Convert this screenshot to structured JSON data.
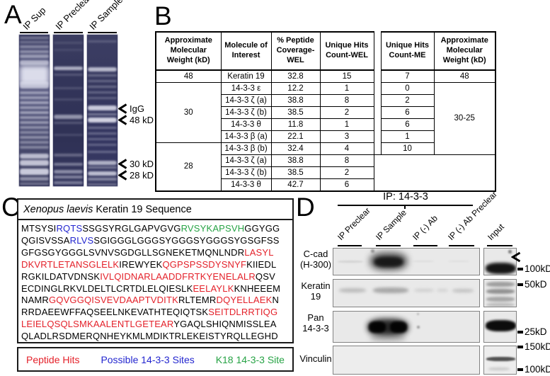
{
  "colors": {
    "red": "#e4212a",
    "blue": "#2326cf",
    "green": "#27a345",
    "gel_bg": "#343657",
    "gel_band": "#e2e3f0",
    "blot_bg": "#e9e9e9"
  },
  "panel_a": {
    "label": "A",
    "lane_labels": [
      "IP Sup",
      "IP Preclear",
      "IP Sample"
    ],
    "annotations": [
      "IgG",
      "48 kD",
      "30 kD",
      "28 kD"
    ],
    "lanes": [
      {
        "bands": [
          [
            3,
            3,
            0.35
          ],
          [
            9,
            3,
            0.3
          ],
          [
            15,
            4,
            0.4
          ],
          [
            22,
            4,
            0.45
          ],
          [
            28,
            5,
            0.5
          ],
          [
            36,
            7,
            0.65
          ],
          [
            44,
            26,
            0.95
          ],
          [
            66,
            10,
            0.7
          ],
          [
            80,
            4,
            0.5
          ],
          [
            87,
            4,
            0.5
          ],
          [
            94,
            4,
            0.55
          ],
          [
            101,
            4,
            0.5
          ],
          [
            108,
            4,
            0.55
          ],
          [
            115,
            4,
            0.5
          ],
          [
            122,
            4,
            0.5
          ],
          [
            129,
            4,
            0.45
          ],
          [
            136,
            4,
            0.4
          ],
          [
            143,
            4,
            0.45
          ],
          [
            150,
            4,
            0.4
          ],
          [
            157,
            4,
            0.4
          ],
          [
            168,
            7,
            0.75
          ],
          [
            177,
            8,
            0.8
          ],
          [
            189,
            9,
            0.85
          ],
          [
            201,
            5,
            0.5
          ],
          [
            209,
            3,
            0.35
          ]
        ]
      },
      {
        "bands": [
          [
            10,
            3,
            0.12
          ],
          [
            20,
            3,
            0.1
          ],
          [
            45,
            5,
            0.7
          ],
          [
            55,
            3,
            0.2
          ],
          [
            74,
            3,
            0.18
          ],
          [
            90,
            3,
            0.15
          ],
          [
            113,
            6,
            0.55
          ],
          [
            123,
            3,
            0.22
          ],
          [
            140,
            3,
            0.15
          ],
          [
            168,
            4,
            0.3
          ],
          [
            181,
            4,
            0.4
          ],
          [
            191,
            5,
            0.5
          ],
          [
            199,
            4,
            0.45
          ],
          [
            207,
            4,
            0.4
          ]
        ]
      },
      {
        "bands": [
          [
            8,
            3,
            0.2
          ],
          [
            46,
            6,
            0.75
          ],
          [
            56,
            3,
            0.3
          ],
          [
            64,
            3,
            0.28
          ],
          [
            72,
            3,
            0.3
          ],
          [
            80,
            3,
            0.28
          ],
          [
            88,
            3,
            0.25
          ],
          [
            100,
            7,
            0.85
          ],
          [
            111,
            3,
            0.4
          ],
          [
            117,
            7,
            0.9
          ],
          [
            130,
            3,
            0.32
          ],
          [
            138,
            3,
            0.3
          ],
          [
            146,
            3,
            0.28
          ],
          [
            154,
            3,
            0.28
          ],
          [
            164,
            3,
            0.3
          ],
          [
            178,
            6,
            0.7
          ],
          [
            186,
            3,
            0.4
          ],
          [
            193,
            6,
            0.78
          ],
          [
            202,
            4,
            0.45
          ],
          [
            210,
            3,
            0.3
          ]
        ]
      }
    ]
  },
  "panel_b": {
    "label": "B",
    "headers": [
      "Approximate Molecular Weight (kD)",
      "Molecule of Interest",
      "% Peptide Coverage-WEL",
      "Unique Hits Count-WEL",
      "Unique Hits Count-ME",
      "Approximate Molecular Weight (kD)"
    ],
    "rows": [
      [
        {
          "t": "48"
        },
        {
          "t": "Keratin 19"
        },
        {
          "t": "32.8"
        },
        {
          "t": "15"
        },
        {
          "sp": 1
        },
        {
          "t": "7"
        },
        {
          "t": "48"
        }
      ],
      [
        {
          "t": "30",
          "rs": 5
        },
        {
          "t": "14-3-3 ε"
        },
        {
          "t": "12.2"
        },
        {
          "t": "1"
        },
        {
          "sp": 1
        },
        {
          "t": "0"
        },
        {
          "t": "30-25",
          "rs": 6
        }
      ],
      [
        {
          "t": "14-3-3 ζ (a)"
        },
        {
          "t": "38.8"
        },
        {
          "t": "8"
        },
        {
          "sp": 1
        },
        {
          "t": "2"
        }
      ],
      [
        {
          "t": "14-3-3 ζ (b)"
        },
        {
          "t": "38.5"
        },
        {
          "t": "2"
        },
        {
          "sp": 1
        },
        {
          "t": "6"
        }
      ],
      [
        {
          "t": "14-3-3 θ"
        },
        {
          "t": "11.8"
        },
        {
          "t": "1"
        },
        {
          "sp": 1
        },
        {
          "t": "6"
        }
      ],
      [
        {
          "t": "14-3-3 β (a)"
        },
        {
          "t": "22.1"
        },
        {
          "t": "3"
        },
        {
          "sp": 1
        },
        {
          "t": "1"
        }
      ],
      [
        {
          "t": "28",
          "rs": 4
        },
        {
          "t": "14-3-3 β (b)"
        },
        {
          "t": "32.4"
        },
        {
          "t": "4"
        },
        {
          "sp": 1
        },
        {
          "t": "10"
        }
      ],
      [
        {
          "t": "14-3-3 ζ (a)"
        },
        {
          "t": "38.8"
        },
        {
          "t": "8"
        },
        {
          "t": "",
          "cs": 3,
          "rs": 3
        }
      ],
      [
        {
          "t": "14-3-3 ζ (b)"
        },
        {
          "t": "38.5"
        },
        {
          "t": "2"
        }
      ],
      [
        {
          "t": "14-3-3 θ"
        },
        {
          "t": "42.7"
        },
        {
          "t": "6"
        }
      ]
    ]
  },
  "panel_c": {
    "label": "C",
    "title_italic": "Xenopus laevis",
    "title_rest": " Keratin 19 Sequence",
    "legend": [
      {
        "text": "Peptide Hits",
        "color": "red"
      },
      {
        "text": "Possible 14-3-3 Sites",
        "color": "blue"
      },
      {
        "text": "K18 14-3-3 Site",
        "color": "green"
      }
    ],
    "sequence_lines": [
      [
        [
          "MTSYSI",
          "k"
        ],
        [
          "RQTS",
          "b"
        ],
        [
          "SSGSYRGLGAPVGVG",
          "k"
        ],
        [
          "RVSYKAPSVH",
          "g"
        ],
        [
          "GGYGG",
          "k"
        ]
      ],
      [
        [
          "QGISVSSA",
          "k"
        ],
        [
          "RLVS",
          "b"
        ],
        [
          "SGIGGGLGGGSYGGGSYGGGSYGSGFSS",
          "k"
        ]
      ],
      [
        [
          "GFGSGYGGGLSVNVSGDGLLSGNEKETMQNLNDR",
          "k"
        ],
        [
          "LASYL",
          "r"
        ]
      ],
      [
        [
          "DKVRTLETANSGLELK",
          "r"
        ],
        [
          "IREWYEK",
          "k"
        ],
        [
          "QGPSPSSDYSNYF",
          "r"
        ],
        [
          "KIIEDL",
          "k"
        ]
      ],
      [
        [
          "RGKILDATVDNSK",
          "k"
        ],
        [
          "IVLQIDNARLAADDFRTKYENELALR",
          "r"
        ],
        [
          "QSV",
          "k"
        ]
      ],
      [
        [
          "ECDINGLRKVLDELTLCRTDLELQIESLK",
          "k"
        ],
        [
          "EELAYLK",
          "r"
        ],
        [
          "KNHEEEM",
          "k"
        ]
      ],
      [
        [
          "NAMR",
          "k"
        ],
        [
          "GQVGGQISVEVDAAPTVDITK",
          "r"
        ],
        [
          "RLTEMR",
          "k"
        ],
        [
          "DQYELLAEK",
          "r"
        ],
        [
          "N",
          "k"
        ]
      ],
      [
        [
          "RRDAEEWFFAQSEELNKEVATHTEQIQTSK",
          "k"
        ],
        [
          "SEITDLRRTIQG",
          "r"
        ]
      ],
      [
        [
          "LEIELQSQLSMKAALENTLGETEAR",
          "r"
        ],
        [
          "YGAQLSHIQNMISSLEA",
          "k"
        ]
      ],
      [
        [
          "QLADLRSDMERQNHEYKMLMDIKTRLEKEISTYRQLLEGHD",
          "k"
        ]
      ]
    ]
  },
  "panel_d": {
    "label": "D",
    "ip_header": "IP: 14-3-3",
    "lane_labels": [
      "IP Preclear",
      "IP Sample",
      "IP (-) Ab",
      "IP (-) Ab Preclear",
      "Input"
    ],
    "rows": [
      {
        "label_lines": [
          "C-cad",
          "(H-300)"
        ]
      },
      {
        "label_lines": [
          "Keratin",
          "19"
        ]
      },
      {
        "label_lines": [
          "Pan",
          "14-3-3"
        ]
      },
      {
        "label_lines": [
          "Vinculin"
        ]
      }
    ],
    "markers": [
      "100kD",
      "50kD",
      "25kD",
      "150kD",
      "100kD"
    ],
    "blots": [
      {
        "bands": [
          [
            6,
            17,
            36,
            3,
            "#aaaaaa",
            0.35,
            1
          ],
          [
            52,
            6,
            52,
            24,
            "#1c1c1c",
            0.8,
            5
          ],
          [
            58,
            12,
            40,
            14,
            "#111111",
            0.85,
            2
          ],
          [
            112,
            17,
            30,
            2,
            "#bbbbbb",
            0.3,
            1
          ],
          [
            162,
            17,
            30,
            2,
            "#bbbbbb",
            0.25,
            1
          ],
          [
            53,
            1,
            5,
            5,
            "#555555",
            0.5,
            1
          ]
        ],
        "input_bands": [
          [
            2,
            20,
            43,
            16,
            "#0a0a0a",
            0.95,
            2
          ],
          [
            34,
            2,
            5,
            5,
            "#444444",
            0.6,
            1
          ]
        ]
      },
      {
        "bands": [
          [
            8,
            12,
            38,
            6,
            "#777777",
            0.4,
            2
          ],
          [
            56,
            11,
            50,
            8,
            "#666666",
            0.5,
            2
          ],
          [
            114,
            13,
            28,
            4,
            "#888888",
            0.3,
            2
          ],
          [
            146,
            13,
            16,
            4,
            "#888888",
            0.25,
            2
          ],
          [
            168,
            13,
            30,
            5,
            "#777777",
            0.35,
            2
          ]
        ],
        "input_bands": [
          [
            3,
            3,
            40,
            7,
            "#555555",
            0.5,
            1.5
          ],
          [
            3,
            13,
            40,
            7,
            "#4a4a4a",
            0.55,
            1.5
          ],
          [
            3,
            24,
            40,
            7,
            "#555555",
            0.45,
            1.5
          ],
          [
            3,
            33,
            40,
            5,
            "#666666",
            0.35,
            1.5
          ]
        ]
      },
      {
        "bands": [
          [
            48,
            10,
            58,
            24,
            "#111111",
            0.9,
            4
          ],
          [
            50,
            14,
            24,
            16,
            "#000000",
            0.9,
            1.5
          ],
          [
            80,
            14,
            24,
            16,
            "#000000",
            0.9,
            1.5
          ],
          [
            52,
            32,
            50,
            10,
            "#333333",
            0.3,
            4
          ],
          [
            118,
            20,
            4,
            4,
            "#555555",
            0.5,
            1
          ],
          [
            118,
            2,
            3,
            3,
            "#666666",
            0.4,
            1
          ]
        ],
        "input_bands": [
          [
            2,
            12,
            43,
            16,
            "#050505",
            0.97,
            1.5
          ]
        ]
      },
      {
        "bands": [],
        "input_bands": [
          [
            3,
            15,
            41,
            6,
            "#2a2a2a",
            0.8,
            1
          ],
          [
            6,
            30,
            30,
            4,
            "#777777",
            0.3,
            1.5
          ]
        ]
      }
    ]
  }
}
